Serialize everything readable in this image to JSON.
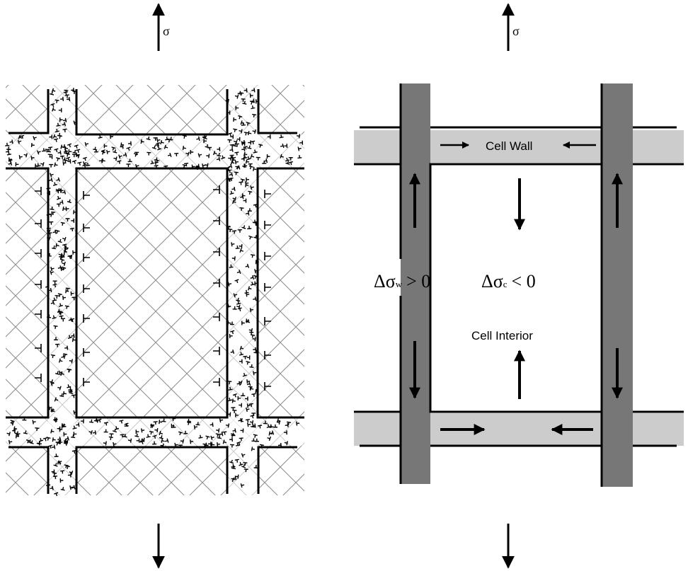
{
  "left_panel": {
    "stress_symbol_top": "σ"
  },
  "right_panel": {
    "stress_symbol_top": "σ",
    "label_cell_wall": "Cell Wall",
    "label_cell_interior": "Cell Interior",
    "wall_stress": {
      "prefix": "Δσ",
      "subscript": "w",
      "relation": "> 0"
    },
    "interior_stress": {
      "prefix": "Δσ",
      "subscript": "c",
      "relation": "< 0"
    }
  },
  "colors": {
    "wall_light": "#cccccc",
    "wall_dark": "#777777",
    "line": "#000000"
  }
}
